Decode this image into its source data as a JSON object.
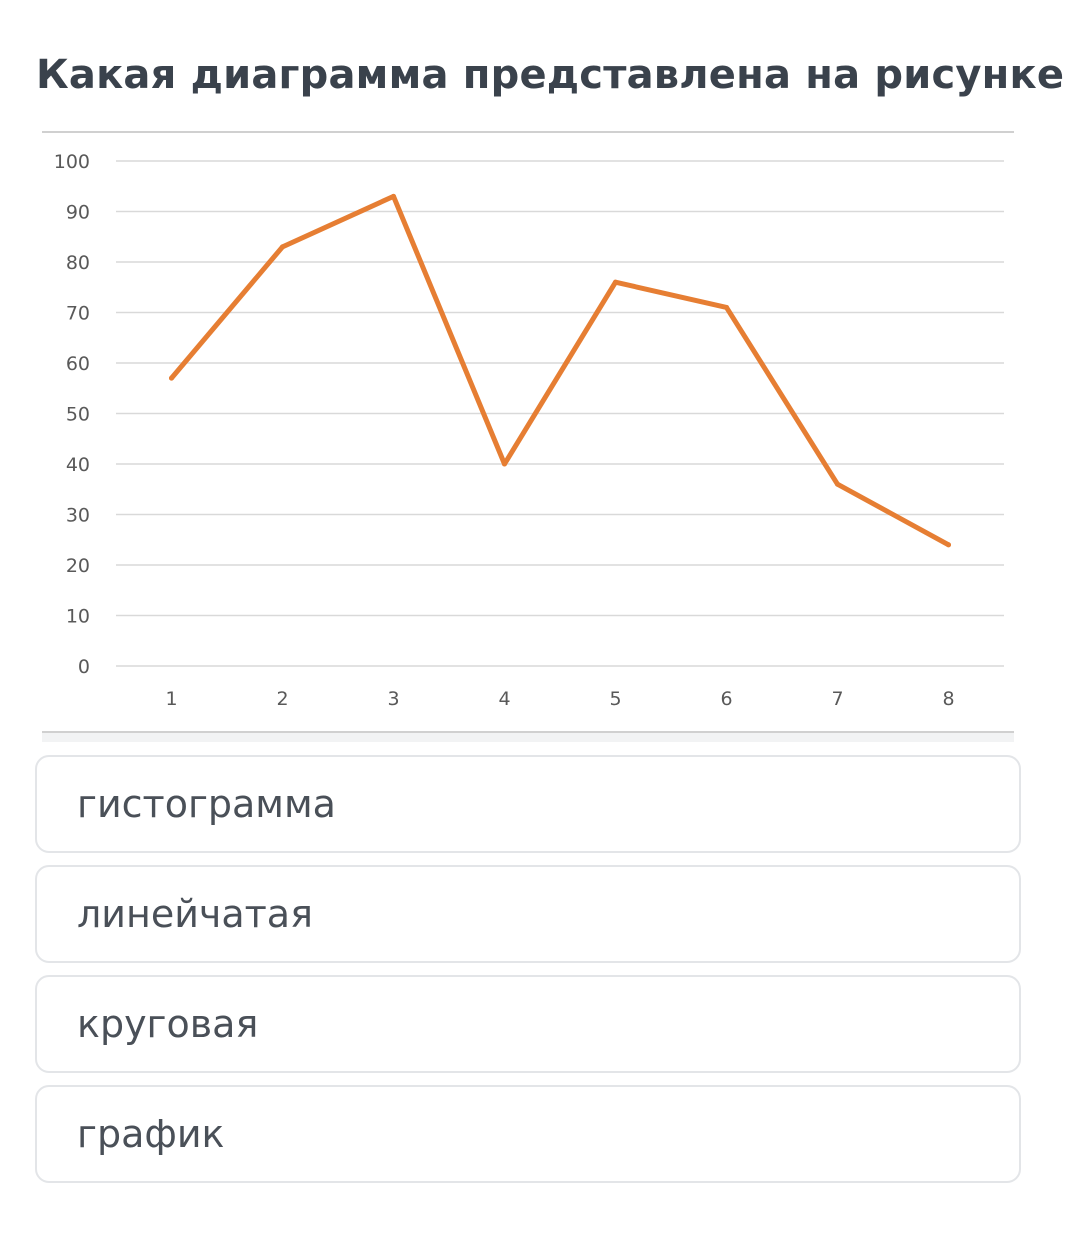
{
  "question": {
    "text": "Какая диаграмма представлена на рисунке?"
  },
  "chart_data": {
    "type": "line",
    "title": "",
    "xlabel": "",
    "ylabel": "",
    "categories": [
      "1",
      "2",
      "3",
      "4",
      "5",
      "6",
      "7",
      "8"
    ],
    "values": [
      57,
      83,
      93,
      40,
      76,
      71,
      36,
      24
    ],
    "ylim": [
      0,
      100
    ],
    "yticks": [
      "0",
      "10",
      "20",
      "30",
      "40",
      "50",
      "60",
      "70",
      "80",
      "90",
      "100"
    ],
    "grid": true,
    "legend": "none",
    "line_color": "#E67E33",
    "grid_color": "#d9d9d9",
    "tick_color": "#595959"
  },
  "options": [
    {
      "label": "гистограмма"
    },
    {
      "label": "линейчатая"
    },
    {
      "label": "круговая"
    },
    {
      "label": "график"
    }
  ]
}
